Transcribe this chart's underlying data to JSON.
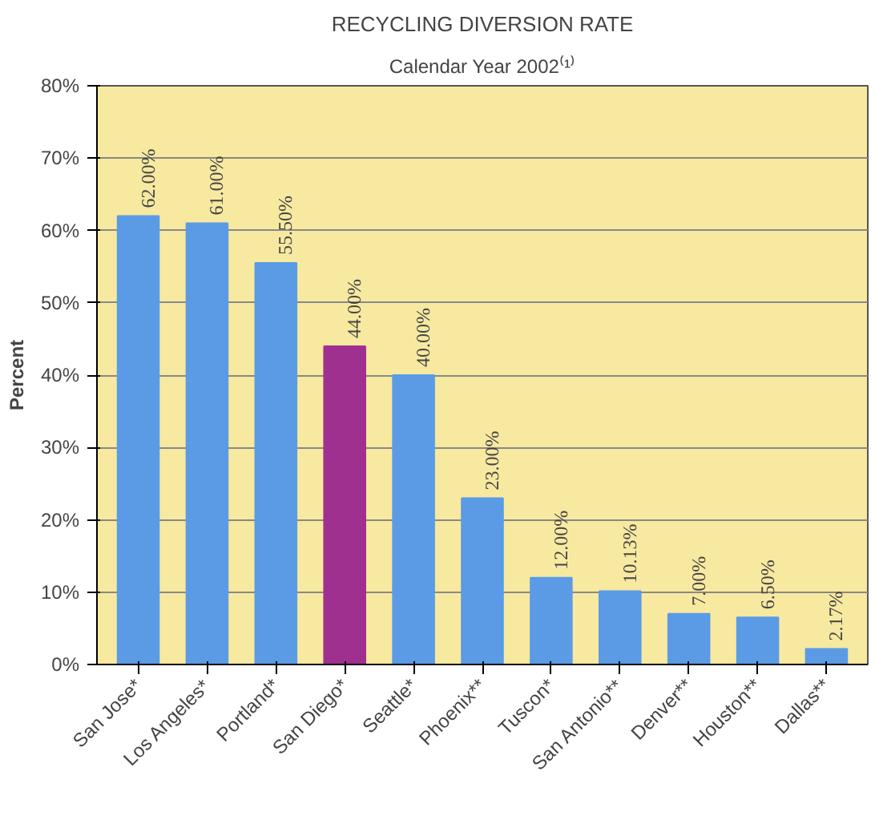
{
  "chart_data": {
    "type": "bar",
    "title": "RECYCLING DIVERSION RATE",
    "subtitle": "Calendar Year 2002⁽¹⁾",
    "ylabel": "Percent",
    "categories": [
      "San Jose*",
      "Los Angeles*",
      "Portland*",
      "San Diego*",
      "Seattle*",
      "Phoenix**",
      "Tuscon*",
      "San Antonio**",
      "Denver**",
      "Houston**",
      "Dallas**"
    ],
    "values": [
      62,
      61,
      55.5,
      44,
      40,
      23,
      12,
      10.13,
      7,
      6.5,
      2.17
    ],
    "value_labels": [
      "62.00%",
      "61.00%",
      "55.50%",
      "44.00%",
      "40.00%",
      "23.00%",
      "12.00%",
      "10.13%",
      "7.00%",
      "6.50%",
      "2.17%"
    ],
    "colors": [
      "#5b9be6",
      "#5b9be6",
      "#5b9be6",
      "#a0308f",
      "#5b9be6",
      "#5b9be6",
      "#5b9be6",
      "#5b9be6",
      "#5b9be6",
      "#5b9be6",
      "#5b9be6"
    ],
    "ylim": [
      0,
      80
    ],
    "yticks": [
      {
        "value": 0,
        "label": "0%"
      },
      {
        "value": 10,
        "label": "10%"
      },
      {
        "value": 20,
        "label": "20%"
      },
      {
        "value": 30,
        "label": "30%"
      },
      {
        "value": 40,
        "label": "40%"
      },
      {
        "value": 50,
        "label": "50%"
      },
      {
        "value": 60,
        "label": "60%"
      },
      {
        "value": 70,
        "label": "70%"
      },
      {
        "value": 80,
        "label": "80%"
      }
    ],
    "grid": "y"
  }
}
